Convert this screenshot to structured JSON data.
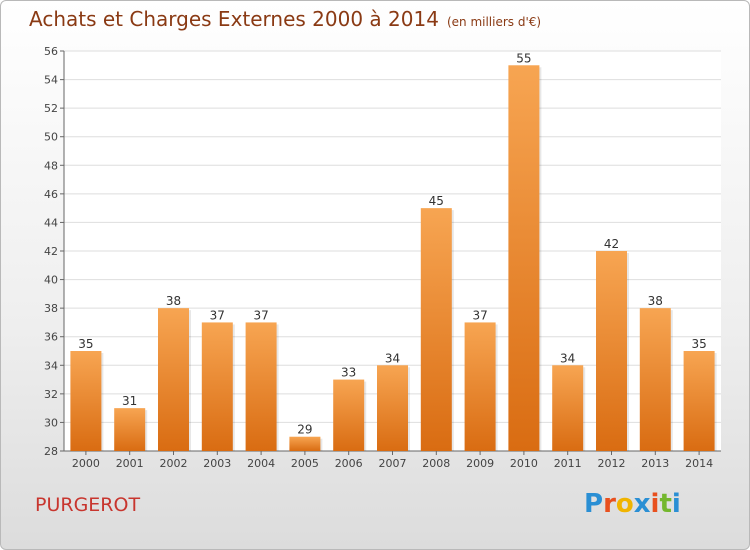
{
  "header": {
    "title": "Achats et Charges Externes 2000 à 2014",
    "unit": "(en milliers d'€)"
  },
  "footer": {
    "commune": "PURGEROT",
    "logo_text": "Proxiti",
    "logo_colors": [
      "#2a8fd4",
      "#e8501e",
      "#f0b400",
      "#2a8fd4",
      "#e8501e",
      "#74b72e",
      "#2a8fd4"
    ]
  },
  "chart_data": {
    "type": "bar",
    "categories": [
      "2000",
      "2001",
      "2002",
      "2003",
      "2004",
      "2005",
      "2006",
      "2007",
      "2008",
      "2009",
      "2010",
      "2011",
      "2012",
      "2013",
      "2014"
    ],
    "values": [
      35,
      31,
      38,
      37,
      37,
      29,
      33,
      34,
      45,
      37,
      55,
      34,
      42,
      38,
      35
    ],
    "ylim": [
      28,
      56
    ],
    "yticks": [
      28,
      30,
      32,
      34,
      36,
      38,
      40,
      42,
      44,
      46,
      48,
      50,
      52,
      54,
      56
    ],
    "grid": true,
    "bar_color": "#f08a2a",
    "bar_color_light": "#f7a552",
    "bar_color_dark": "#d96c12",
    "show_data_labels": true
  }
}
